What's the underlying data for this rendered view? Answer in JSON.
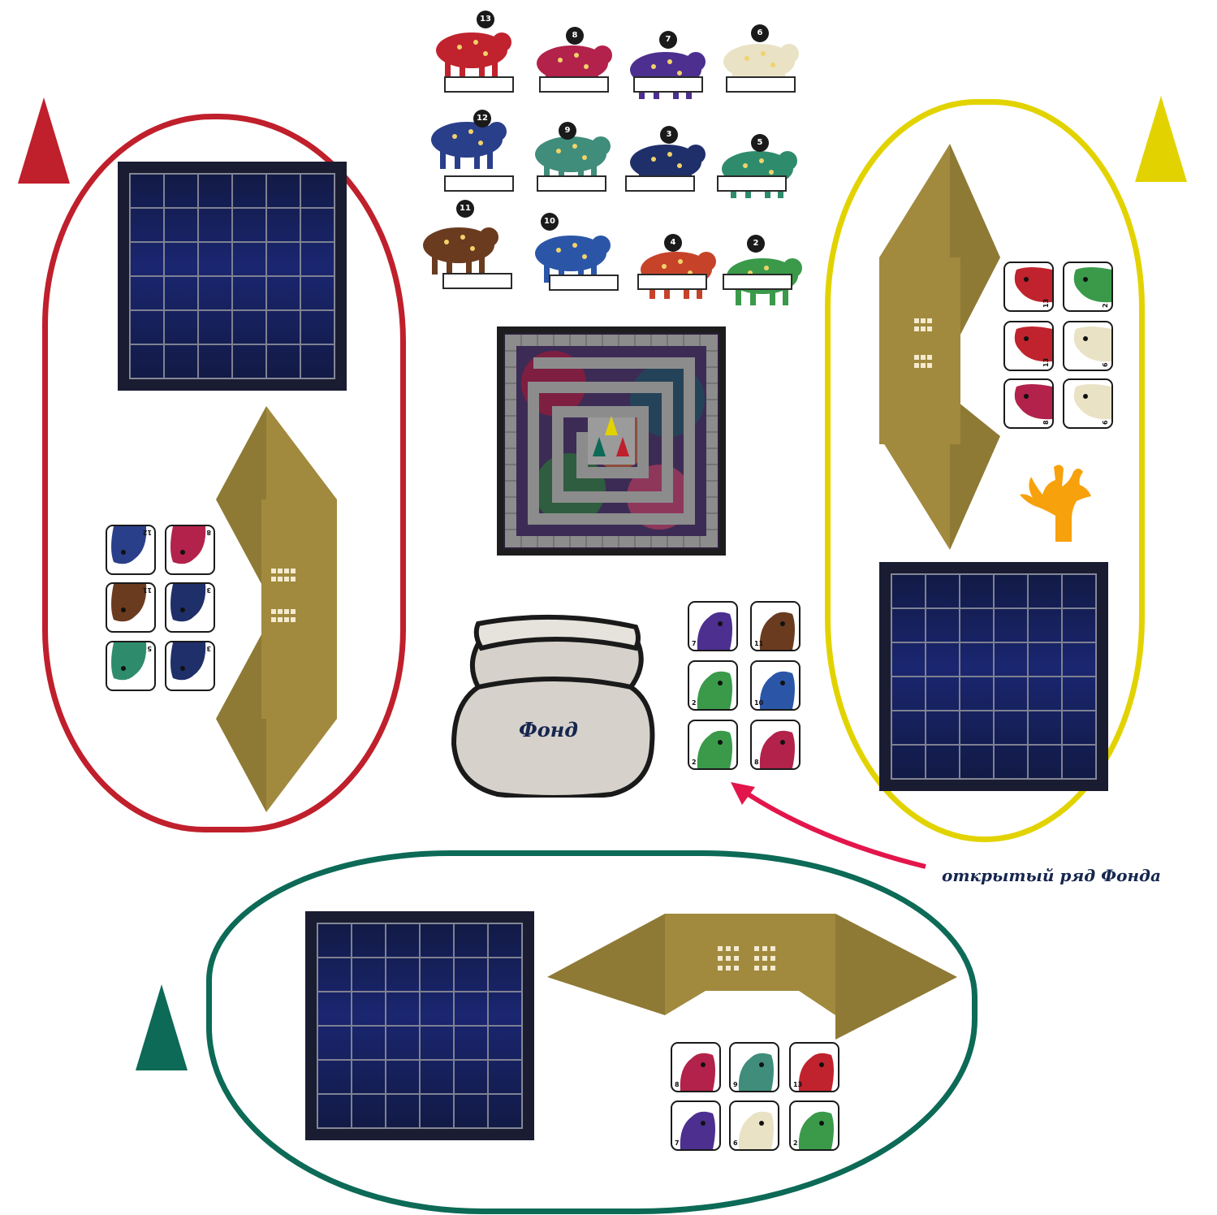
{
  "colors": {
    "red": "#c01f2c",
    "yellow": "#e2d300",
    "green": "#0c6a56",
    "orange": "#f7a10c",
    "arrow": "#e3164b",
    "screen": "#a18a3e",
    "board_track": "#8c8c8c",
    "grid_bg": "#1a1c32"
  },
  "players": [
    {
      "color": "red",
      "icon": "red-cone-pawn"
    },
    {
      "color": "yellow",
      "icon": "yellow-cone-pawn"
    },
    {
      "color": "green",
      "icon": "green-cone-pawn"
    }
  ],
  "animals": [
    {
      "number": "13",
      "kind": "bull"
    },
    {
      "number": "8",
      "kind": "boar-cub"
    },
    {
      "number": "7",
      "kind": "badger"
    },
    {
      "number": "6",
      "kind": "fox"
    },
    {
      "number": "12",
      "kind": "moose"
    },
    {
      "number": "9",
      "kind": "lynx"
    },
    {
      "number": "3",
      "kind": "hedgehog"
    },
    {
      "number": "5",
      "kind": "lizard"
    },
    {
      "number": "11",
      "kind": "bear"
    },
    {
      "number": "10",
      "kind": "boar"
    },
    {
      "number": "4",
      "kind": "squirrel"
    },
    {
      "number": "2",
      "kind": "mouse"
    }
  ],
  "hands": {
    "red": [
      "12",
      "8",
      "11",
      "3",
      "5",
      "3"
    ],
    "yellow": [
      "13",
      "2",
      "13",
      "6",
      "8",
      "6"
    ],
    "green": [
      "8",
      "9",
      "13",
      "7",
      "6",
      "2"
    ]
  },
  "fund": {
    "label": "Фонд",
    "open_row": [
      "7",
      "11",
      "2",
      "10",
      "2",
      "8"
    ],
    "caption": "открытый ряд Фонда"
  },
  "bonus_token": {
    "icon": "orange-coral-token"
  }
}
